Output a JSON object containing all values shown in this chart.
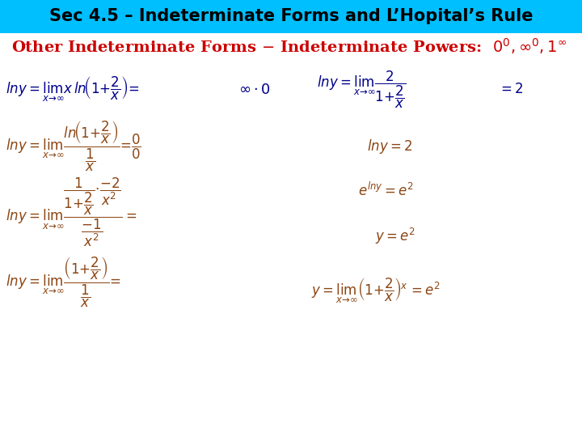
{
  "title": "Sec 4.5 – Indeterminate Forms and L’Hopital’s Rule",
  "title_bg": "#00BFFF",
  "title_color": "#000000",
  "title_fontsize": 15,
  "subtitle_color": "#CC0000",
  "subtitle_fontsize": 14,
  "math_color_blue": "#00008B",
  "math_color_brown": "#8B4513",
  "bg_color": "#FFFFFF",
  "fig_width": 7.2,
  "fig_height": 5.4
}
